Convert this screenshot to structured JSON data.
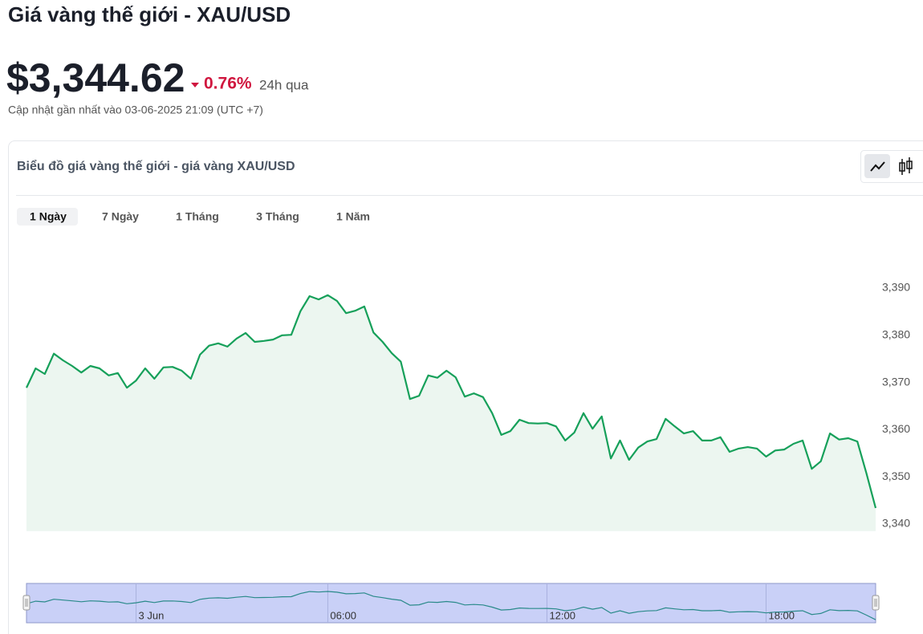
{
  "header": {
    "title": "Giá vàng thế giới - XAU/USD",
    "price": "$3,344.62",
    "change": "0.76%",
    "period": "24h qua",
    "updated": "Cập nhật gần nhất vào 03-06-2025 21:09 (UTC +7)"
  },
  "card": {
    "title": "Biểu đồ giá vàng thế giới - giá vàng XAU/USD",
    "tabs": [
      "1 Ngày",
      "7 Ngày",
      "1 Tháng",
      "3 Tháng",
      "1 Năm"
    ],
    "active_tab": 0
  },
  "chart_data": {
    "type": "line",
    "color": "#16a05a",
    "values": [
      3368.9,
      3373.0,
      3371.8,
      3376.1,
      3374.7,
      3373.5,
      3372.1,
      3373.5,
      3373.0,
      3371.5,
      3372.0,
      3368.9,
      3370.4,
      3373.0,
      3370.8,
      3373.2,
      3373.3,
      3372.5,
      3370.8,
      3375.9,
      3377.8,
      3378.3,
      3377.6,
      3379.3,
      3380.5,
      3378.6,
      3378.8,
      3379.1,
      3380.0,
      3380.1,
      3385.1,
      3388.3,
      3387.6,
      3388.5,
      3387.3,
      3384.7,
      3385.2,
      3386.1,
      3380.6,
      3378.6,
      3376.2,
      3374.4,
      3366.5,
      3367.2,
      3371.5,
      3371.0,
      3372.5,
      3371.1,
      3367.0,
      3367.7,
      3366.9,
      3363.5,
      3358.9,
      3359.7,
      3362.1,
      3361.4,
      3361.3,
      3361.4,
      3360.7,
      3357.7,
      3359.4,
      3363.5,
      3360.2,
      3362.8,
      3353.9,
      3357.7,
      3353.6,
      3356.2,
      3357.5,
      3358.0,
      3362.3,
      3360.7,
      3359.2,
      3359.7,
      3357.7,
      3357.7,
      3358.4,
      3355.3,
      3356.0,
      3356.3,
      3356.0,
      3354.3,
      3355.6,
      3355.8,
      3357.0,
      3357.7,
      3351.7,
      3353.3,
      3359.2,
      3357.9,
      3358.2,
      3357.5,
      3350.7,
      3343.4
    ],
    "ylim": [
      3338.5,
      3400
    ],
    "yticks": [
      {
        "value": 3340,
        "label": "3,340"
      },
      {
        "value": 3350,
        "label": "3,350"
      },
      {
        "value": 3360,
        "label": "3,360"
      },
      {
        "value": 3370,
        "label": "3,370"
      },
      {
        "value": 3380,
        "label": "3,380"
      },
      {
        "value": 3390,
        "label": "3,390"
      }
    ],
    "xlim": [
      0,
      93
    ],
    "xticks": [
      {
        "value": 12,
        "label": "3 Jun"
      },
      {
        "value": 33,
        "label": "06:00"
      },
      {
        "value": 57,
        "label": "12:00"
      },
      {
        "value": 81,
        "label": "18:00"
      }
    ]
  }
}
